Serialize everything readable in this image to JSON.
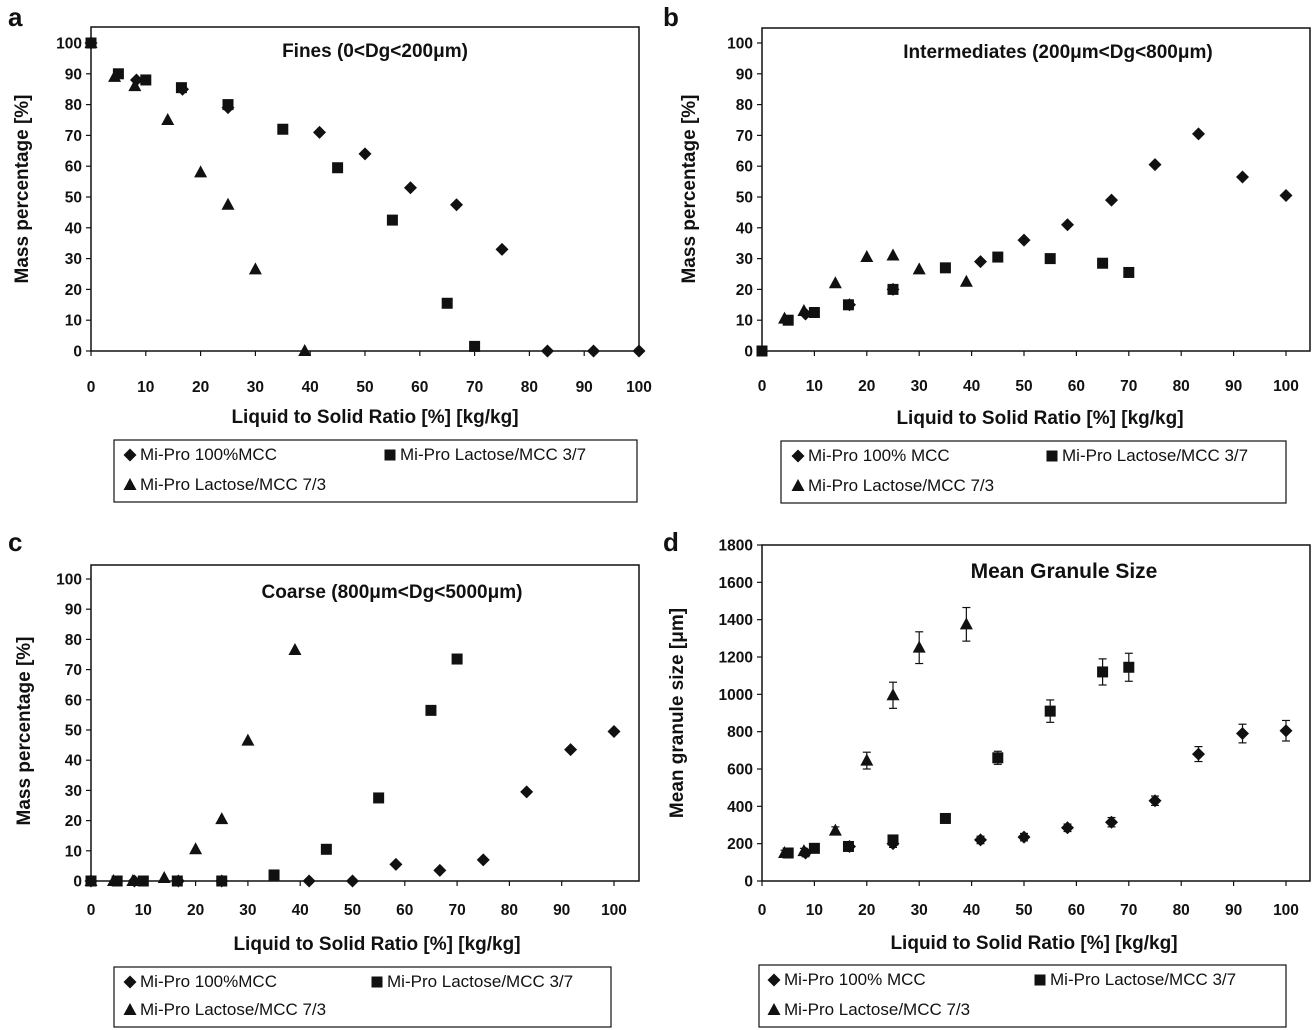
{
  "xlabel": "Liquid to Solid Ratio [%] [kg/kg]",
  "x_ticks": [
    0,
    10,
    20,
    30,
    40,
    50,
    60,
    70,
    80,
    90,
    100
  ],
  "chart_data": [
    {
      "panel": "a",
      "type": "scatter",
      "title": "Fines (0<Dg<200μm)",
      "xlabel": "Liquid to Solid Ratio [%] [kg/kg]",
      "ylabel": "Mass percentage [%]",
      "xlim": [
        0,
        100
      ],
      "ylim": [
        0,
        100
      ],
      "y_ticks": [
        0,
        10,
        20,
        30,
        40,
        50,
        60,
        70,
        80,
        90,
        100
      ],
      "grid": false,
      "legend": [
        "Mi-Pro 100%MCC",
        "Mi-Pro Lactose/MCC 3/7",
        "Mi-Pro Lactose/MCC 7/3"
      ],
      "series": [
        {
          "name": "Mi-Pro 100%MCC",
          "marker": "diamond",
          "x": [
            0,
            8.3,
            16.7,
            25,
            41.7,
            50,
            58.3,
            66.7,
            75,
            83.3,
            91.7,
            100
          ],
          "y": [
            100,
            88,
            85,
            79,
            71,
            64,
            53,
            47.5,
            33,
            0,
            0,
            0
          ]
        },
        {
          "name": "Mi-Pro Lactose/MCC 3/7",
          "marker": "square",
          "x": [
            0,
            5,
            10,
            16.5,
            25,
            35,
            45,
            55,
            65,
            70
          ],
          "y": [
            100,
            90,
            88,
            85.5,
            80,
            72,
            59.5,
            42.5,
            15.5,
            1.5
          ]
        },
        {
          "name": "Mi-Pro Lactose/MCC 7/3",
          "marker": "triangle",
          "x": [
            0,
            4.3,
            8,
            14,
            20,
            25,
            30,
            39
          ],
          "y": [
            100,
            89,
            86,
            75,
            58,
            47.5,
            26.5,
            0
          ]
        }
      ]
    },
    {
      "panel": "b",
      "type": "scatter",
      "title": "Intermediates (200μm<Dg<800μm)",
      "xlabel": "Liquid to Solid Ratio [%] [kg/kg]",
      "ylabel": "Mass percentage [%]",
      "xlim": [
        0,
        100
      ],
      "ylim": [
        0,
        100
      ],
      "y_ticks": [
        0,
        10,
        20,
        30,
        40,
        50,
        60,
        70,
        80,
        90,
        100
      ],
      "grid": false,
      "legend": [
        "Mi-Pro 100% MCC",
        "Mi-Pro Lactose/MCC 3/7",
        "Mi-Pro Lactose/MCC 7/3"
      ],
      "series": [
        {
          "name": "Mi-Pro 100% MCC",
          "marker": "diamond",
          "x": [
            8.3,
            16.7,
            25,
            41.7,
            50,
            58.3,
            66.7,
            75,
            83.3,
            91.7,
            100
          ],
          "y": [
            12,
            15,
            20,
            29,
            36,
            41,
            49,
            60.5,
            70.5,
            56.5,
            50.5
          ]
        },
        {
          "name": "Mi-Pro Lactose/MCC 3/7",
          "marker": "square",
          "x": [
            0,
            5,
            10,
            16.5,
            25,
            35,
            45,
            55,
            65,
            70
          ],
          "y": [
            0,
            10,
            12.5,
            15,
            20,
            27,
            30.5,
            30,
            28.5,
            25.5
          ]
        },
        {
          "name": "Mi-Pro Lactose/MCC 7/3",
          "marker": "triangle",
          "x": [
            4.3,
            8,
            14,
            20,
            25,
            30,
            39
          ],
          "y": [
            10.5,
            13,
            22,
            30.5,
            31,
            26.5,
            22.5
          ]
        }
      ]
    },
    {
      "panel": "c",
      "type": "scatter",
      "title": "Coarse (800μm<Dg<5000μm)",
      "xlabel": "Liquid to Solid Ratio [%] [kg/kg]",
      "ylabel": "Mass percentage [%]",
      "xlim": [
        0,
        100
      ],
      "ylim": [
        0,
        100
      ],
      "y_ticks": [
        0,
        10,
        20,
        30,
        40,
        50,
        60,
        70,
        80,
        90,
        100
      ],
      "grid": false,
      "legend": [
        "Mi-Pro 100%MCC",
        "Mi-Pro Lactose/MCC 3/7",
        "Mi-Pro Lactose/MCC 7/3"
      ],
      "series": [
        {
          "name": "Mi-Pro 100%MCC",
          "marker": "diamond",
          "x": [
            0,
            8.3,
            16.7,
            25,
            41.7,
            50,
            58.3,
            66.7,
            75,
            83.3,
            91.7,
            100
          ],
          "y": [
            0,
            0,
            0,
            0,
            0,
            0,
            5.5,
            3.5,
            7,
            29.5,
            43.5,
            49.5
          ]
        },
        {
          "name": "Mi-Pro Lactose/MCC 3/7",
          "marker": "square",
          "x": [
            0,
            5,
            10,
            16.5,
            25,
            35,
            45,
            55,
            65,
            70
          ],
          "y": [
            0,
            0,
            0,
            0,
            0,
            2,
            10.5,
            27.5,
            56.5,
            73.5
          ]
        },
        {
          "name": "Mi-Pro Lactose/MCC 7/3",
          "marker": "triangle",
          "x": [
            0,
            4.3,
            8,
            14,
            20,
            25,
            30,
            39
          ],
          "y": [
            0,
            0,
            0,
            1,
            10.5,
            20.5,
            46.5,
            76.5
          ]
        }
      ]
    },
    {
      "panel": "d",
      "type": "scatter",
      "title": "Mean Granule Size",
      "xlabel": "Liquid to Solid Ratio [%] [kg/kg]",
      "ylabel": "Mean granule size [μm]",
      "xlim": [
        0,
        100
      ],
      "ylim": [
        0,
        1800
      ],
      "y_ticks": [
        0,
        200,
        400,
        600,
        800,
        1000,
        1200,
        1400,
        1600,
        1800
      ],
      "grid": false,
      "error_bars": true,
      "legend": [
        "Mi-Pro 100% MCC",
        "Mi-Pro Lactose/MCC 3/7",
        "Mi-Pro Lactose/MCC 7/3"
      ],
      "series": [
        {
          "name": "Mi-Pro 100% MCC",
          "marker": "diamond",
          "x": [
            8.3,
            16.7,
            25,
            41.7,
            50,
            58.3,
            66.7,
            75,
            83.3,
            91.7,
            100
          ],
          "y": [
            150,
            185,
            200,
            220,
            235,
            285,
            315,
            430,
            680,
            790,
            805
          ],
          "err": [
            20,
            15,
            20,
            20,
            20,
            20,
            25,
            25,
            40,
            50,
            55
          ]
        },
        {
          "name": "Mi-Pro Lactose/MCC 3/7",
          "marker": "square",
          "x": [
            5,
            10,
            16.5,
            25,
            35,
            45,
            55,
            65,
            70
          ],
          "y": [
            150,
            175,
            185,
            220,
            335,
            660,
            910,
            1120,
            1145
          ],
          "err": [
            15,
            15,
            15,
            20,
            20,
            35,
            60,
            70,
            75
          ]
        },
        {
          "name": "Mi-Pro Lactose/MCC 7/3",
          "marker": "triangle",
          "x": [
            4.3,
            8,
            14,
            20,
            25,
            30,
            39
          ],
          "y": [
            150,
            160,
            270,
            645,
            995,
            1250,
            1375
          ],
          "err": [
            15,
            15,
            20,
            45,
            70,
            85,
            90
          ]
        }
      ]
    }
  ]
}
